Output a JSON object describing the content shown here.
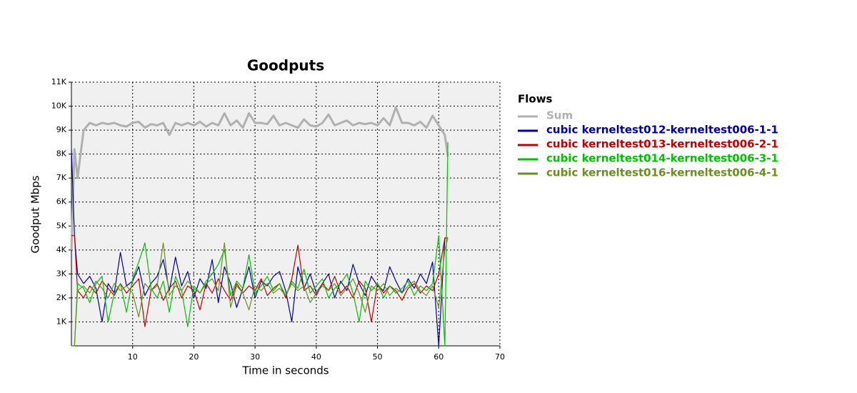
{
  "chart_data": {
    "type": "line",
    "title": "Goodputs",
    "x_label": "Time in seconds",
    "y_label": "Goodput Mbps",
    "legend_title": "Flows",
    "legend": "right",
    "grid": true,
    "xlim": [
      0,
      70
    ],
    "xticks": [
      10,
      20,
      30,
      40,
      50,
      60,
      70
    ],
    "ylim": [
      0,
      11000
    ],
    "yticks": [
      {
        "value": 1000,
        "label": "1K"
      },
      {
        "value": 2000,
        "label": "2K"
      },
      {
        "value": 3000,
        "label": "3K"
      },
      {
        "value": 4000,
        "label": "4K"
      },
      {
        "value": 5000,
        "label": "5K"
      },
      {
        "value": 6000,
        "label": "6K"
      },
      {
        "value": 7000,
        "label": "7K"
      },
      {
        "value": 8000,
        "label": "8K"
      },
      {
        "value": 9000,
        "label": "9K"
      },
      {
        "value": 10000,
        "label": "10K"
      },
      {
        "value": 11000,
        "label": "11K"
      }
    ],
    "x": [
      0,
      0.5,
      1,
      2,
      3,
      4,
      5,
      6,
      7,
      8,
      9,
      10,
      11,
      12,
      13,
      14,
      15,
      16,
      17,
      18,
      19,
      20,
      21,
      22,
      23,
      24,
      25,
      26,
      27,
      28,
      29,
      30,
      31,
      32,
      33,
      34,
      35,
      36,
      37,
      38,
      39,
      40,
      41,
      42,
      43,
      44,
      45,
      46,
      47,
      48,
      49,
      50,
      51,
      52,
      53,
      54,
      55,
      56,
      57,
      58,
      59,
      60,
      61,
      61.5
    ],
    "series": [
      {
        "name": "Sum",
        "color": "#b0b0b0",
        "values": [
          4000,
          8200,
          7000,
          9000,
          9300,
          9200,
          9300,
          9250,
          9300,
          9200,
          9150,
          9300,
          9350,
          9100,
          9250,
          9200,
          9300,
          8800,
          9300,
          9200,
          9300,
          9200,
          9350,
          9150,
          9300,
          9200,
          9700,
          9200,
          9400,
          9100,
          9700,
          9300,
          9300,
          9250,
          9600,
          9200,
          9300,
          9200,
          9100,
          9450,
          9200,
          9150,
          9300,
          9650,
          9200,
          9300,
          9400,
          9200,
          9300,
          9250,
          9300,
          9200,
          9500,
          9200,
          9950,
          9300,
          9300,
          9200,
          9350,
          9100,
          9600,
          9200,
          8800,
          7900
        ]
      },
      {
        "name": "cubic kerneltest012-kerneltest006-1-1",
        "color": "#0000a0",
        "values": [
          8200,
          4600,
          3000,
          2600,
          2900,
          2400,
          1000,
          2600,
          2200,
          3900,
          2500,
          2700,
          3300,
          2100,
          2600,
          2900,
          3600,
          2300,
          3700,
          2500,
          3100,
          2000,
          2800,
          2400,
          3600,
          1800,
          3300,
          2600,
          1600,
          2400,
          3300,
          2000,
          2700,
          2500,
          2900,
          3100,
          2300,
          1000,
          3300,
          2400,
          3000,
          2200,
          2600,
          3000,
          2000,
          2700,
          2300,
          3400,
          2600,
          2100,
          2900,
          2500,
          2300,
          3300,
          2700,
          2200,
          2800,
          2400,
          3000,
          2600,
          3500,
          0,
          4500,
          4500
        ]
      },
      {
        "name": "cubic kerneltest013-kerneltest006-2-1",
        "color": "#c00000",
        "values": [
          4600,
          4600,
          2300,
          2000,
          2500,
          2200,
          2700,
          2400,
          2100,
          2600,
          2200,
          2500,
          2800,
          800,
          2300,
          2600,
          1900,
          2400,
          2700,
          2000,
          2500,
          2300,
          1500,
          2600,
          2200,
          2800,
          2300,
          1900,
          2600,
          2200,
          2500,
          2300,
          2800,
          2100,
          2400,
          2600,
          2000,
          2800,
          4200,
          2300,
          2500,
          2100,
          2600,
          2300,
          2900,
          2200,
          2500,
          2000,
          2700,
          2400,
          1000,
          2600,
          2200,
          2500,
          2300,
          1900,
          2400,
          2600,
          2200,
          2500,
          2300,
          3000,
          4500,
          4500
        ]
      },
      {
        "name": "cubic kerneltest014-kerneltest006-3-1",
        "color": "#00c000",
        "values": [
          0,
          0,
          2600,
          2400,
          1800,
          2600,
          2900,
          1000,
          2200,
          2600,
          1400,
          2800,
          3500,
          4300,
          2400,
          2000,
          2700,
          1400,
          2900,
          2300,
          800,
          2500,
          2200,
          2700,
          3000,
          3400,
          4000,
          2100,
          2700,
          2400,
          3800,
          2200,
          2500,
          2900,
          2300,
          2600,
          2100,
          2700,
          2400,
          3200,
          2200,
          2500,
          2800,
          2000,
          2400,
          2600,
          3000,
          2200,
          1000,
          2700,
          2300,
          2600,
          2000,
          2500,
          2200,
          2400,
          2700,
          2100,
          2500,
          2300,
          2600,
          4600,
          0,
          8500
        ]
      },
      {
        "name": "cubic kerneltest016-kerneltest006-4-1",
        "color": "#6b8e23",
        "values": [
          0,
          0,
          2300,
          2500,
          2200,
          2700,
          2400,
          2000,
          2600,
          2300,
          2500,
          2200,
          1200,
          2600,
          2300,
          2500,
          4300,
          2100,
          2500,
          2300,
          2700,
          2400,
          2200,
          2600,
          2800,
          2300,
          4300,
          1600,
          2500,
          2200,
          1500,
          2500,
          2300,
          2600,
          2200,
          2400,
          2100,
          2600,
          2300,
          2500,
          1800,
          2200,
          2500,
          2300,
          2600,
          2100,
          2400,
          2800,
          2200,
          1400,
          2500,
          2300,
          2600,
          2100,
          2400,
          2200,
          2500,
          2700,
          2300,
          2100,
          2500,
          1600,
          4000,
          4500
        ]
      }
    ]
  }
}
